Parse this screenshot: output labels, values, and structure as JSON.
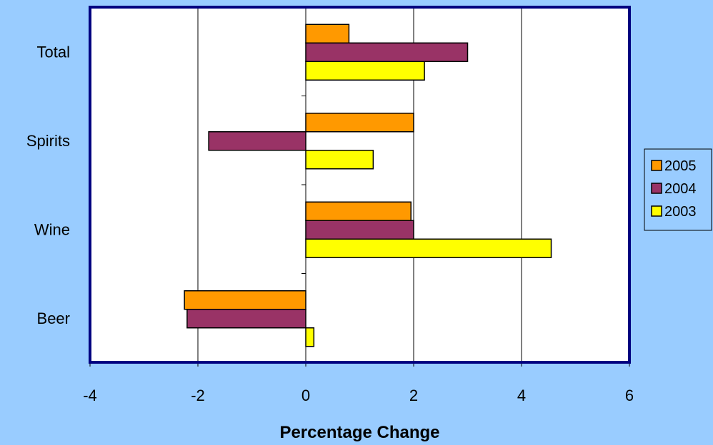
{
  "chart_data": {
    "type": "bar",
    "orientation": "horizontal",
    "categories": [
      "Total",
      "Spirits",
      "Wine",
      "Beer"
    ],
    "series": [
      {
        "name": "2005",
        "values": [
          0.8,
          2.0,
          1.95,
          -2.25
        ],
        "color": "#ff9900"
      },
      {
        "name": "2004",
        "values": [
          3.0,
          -1.8,
          2.0,
          -2.2
        ],
        "color": "#993366"
      },
      {
        "name": "2003",
        "values": [
          2.2,
          1.25,
          4.55,
          0.15
        ],
        "color": "#ffff00"
      }
    ],
    "xlabel": "Percentage Change",
    "ylabel": "",
    "xlim": [
      -4,
      6
    ],
    "xticks": [
      "-4",
      "-2",
      "0",
      "2",
      "4",
      "6"
    ],
    "grid": "vertical",
    "legend_position": "right",
    "colors": {
      "background": "#99ccff",
      "plot_area": "#ffffff",
      "plot_border": "#000080",
      "bar_outline": "#000000"
    }
  }
}
